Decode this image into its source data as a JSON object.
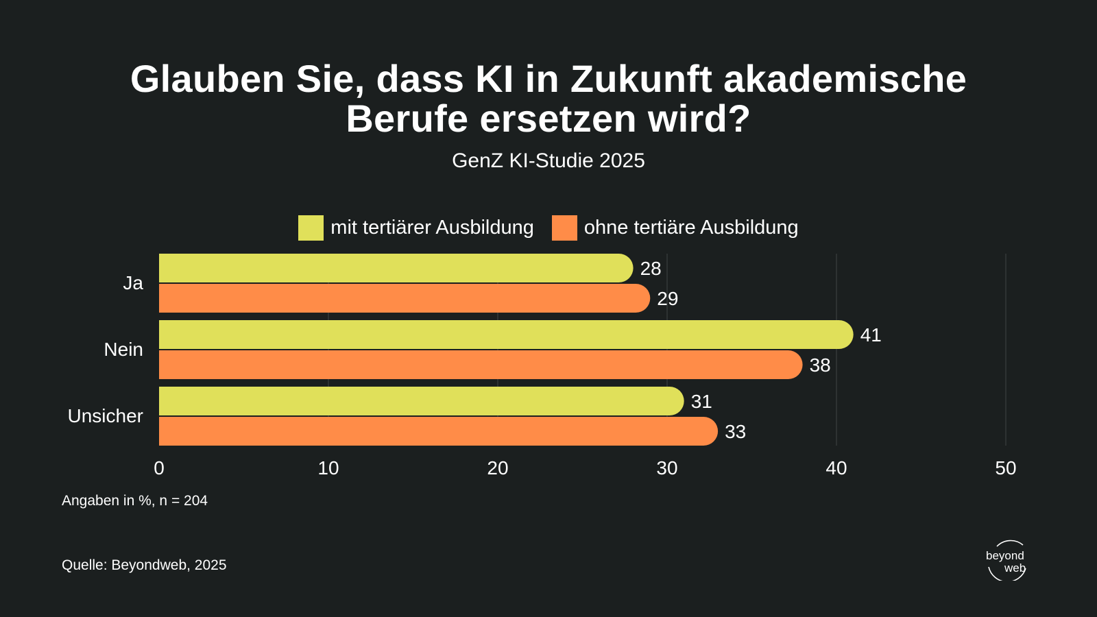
{
  "header": {
    "title_line1": "Glauben Sie, dass KI in Zukunft akademische",
    "title_line2": "Berufe ersetzen wird?",
    "subtitle": "GenZ KI-Studie 2025"
  },
  "chart_data": {
    "type": "bar",
    "orientation": "horizontal",
    "categories": [
      "Ja",
      "Nein",
      "Unsicher"
    ],
    "series": [
      {
        "name": "mit tertiärer Ausbildung",
        "values": [
          28,
          41,
          31
        ],
        "color": "#e0e05a"
      },
      {
        "name": "ohne tertiäre Ausbildung",
        "values": [
          29,
          38,
          33
        ],
        "color": "#ff8c48"
      }
    ],
    "xlim": [
      0,
      50
    ],
    "xticks": [
      0,
      10,
      20,
      30,
      40,
      50
    ],
    "grid": true,
    "legend": "top-center"
  },
  "footer": {
    "note": "Angaben in %, n = 204",
    "source": "Quelle: Beyondweb, 2025",
    "logo_line1": "beyond",
    "logo_line2": "web"
  }
}
